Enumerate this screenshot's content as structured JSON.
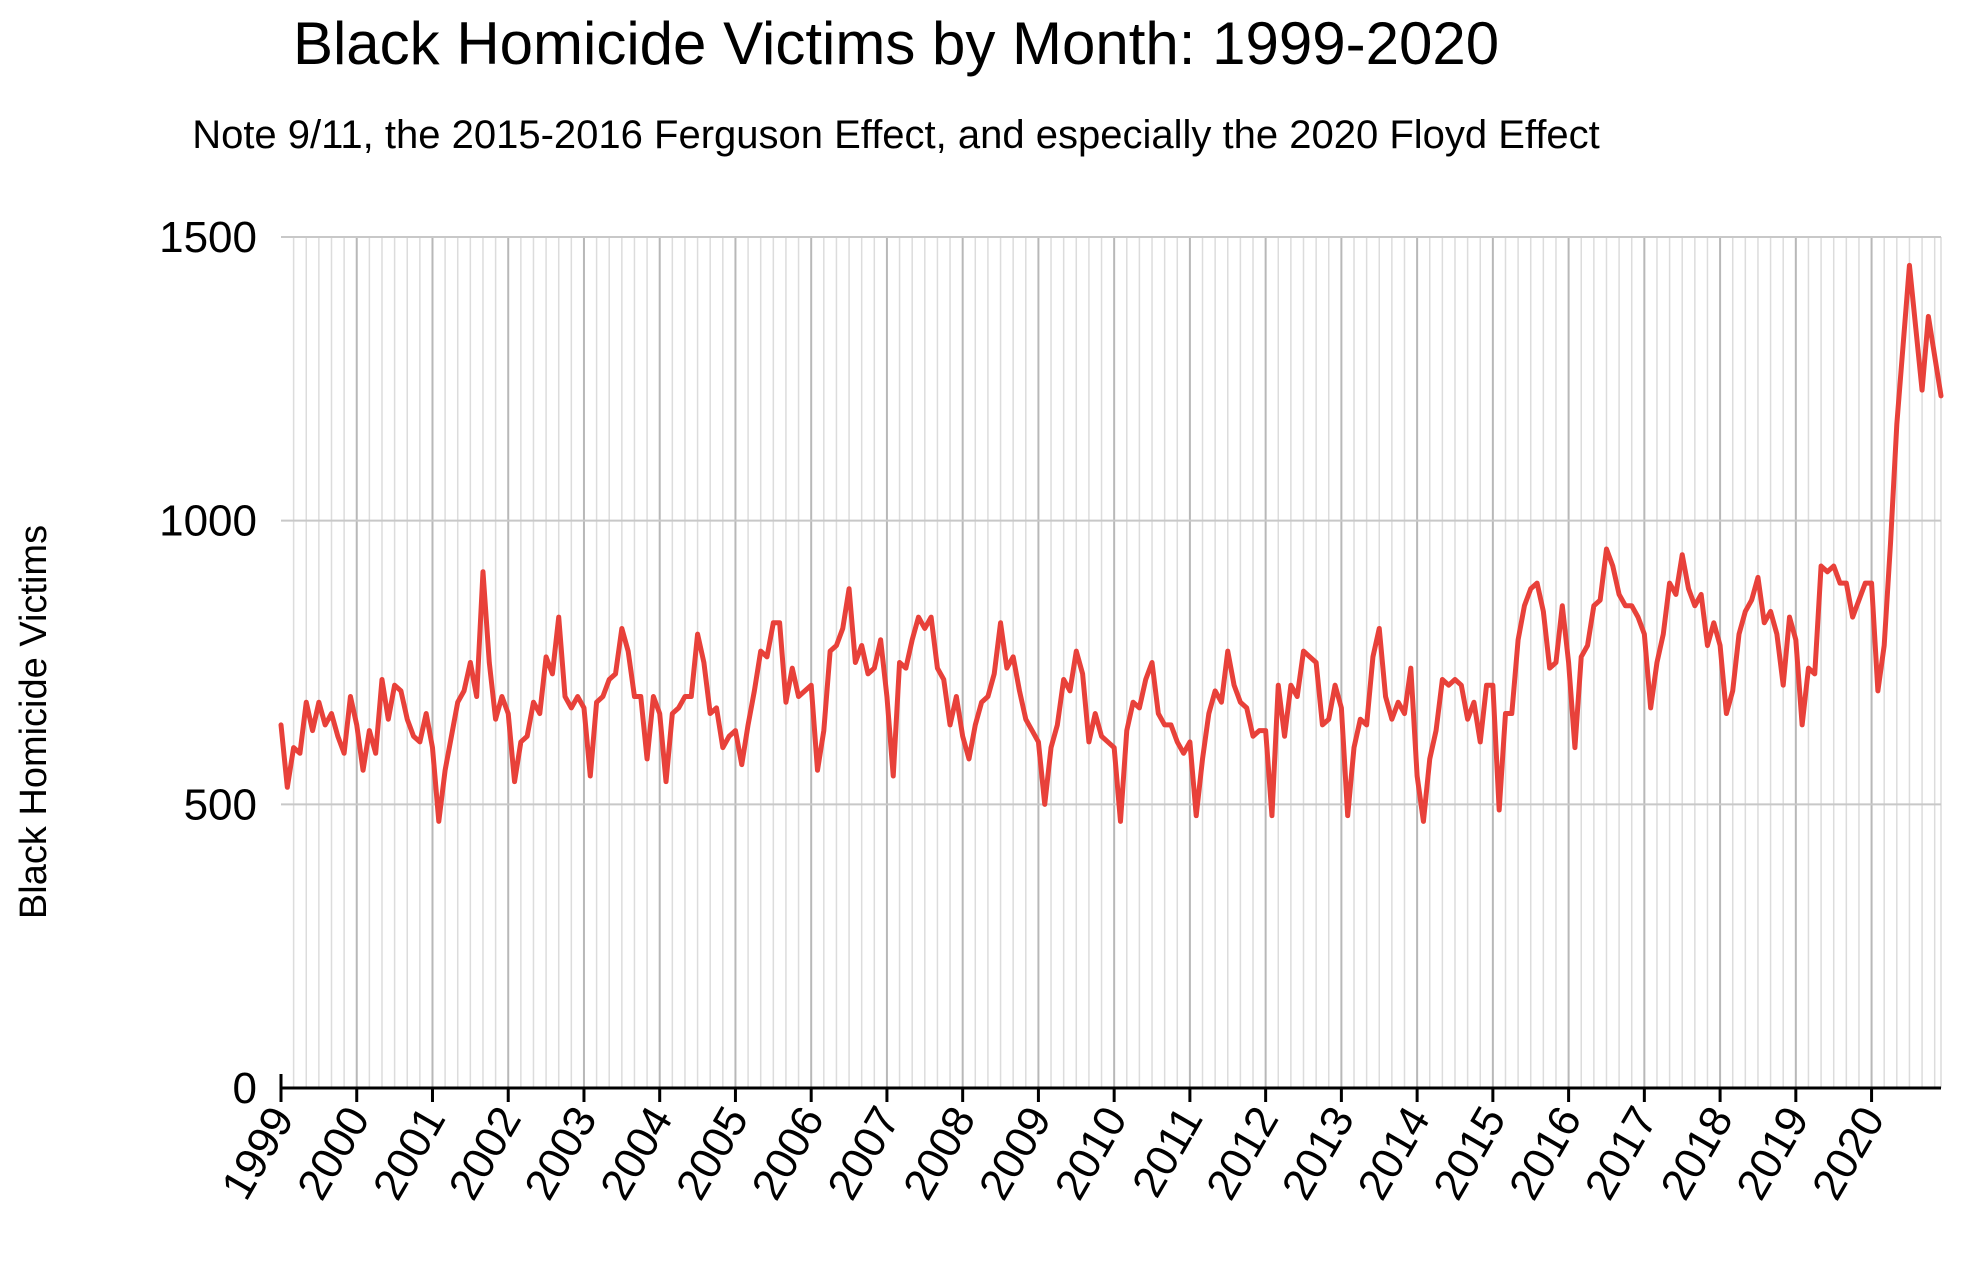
{
  "chart_data": {
    "type": "line",
    "title": "Black Homicide Victims by Month: 1999-2020",
    "subtitle": "Note 9/11, the 2015-2016 Ferguson Effect, and especially the 2020 Floyd Effect",
    "xlabel": "",
    "ylabel": "Black Homicide Victims",
    "ylim": [
      0,
      1500
    ],
    "yticks": [
      0,
      500,
      1000,
      1500
    ],
    "x_tick_labels": [
      "1999",
      "2000",
      "2001",
      "2002",
      "2003",
      "2004",
      "2005",
      "2006",
      "2007",
      "2008",
      "2009",
      "2010",
      "2011",
      "2012",
      "2013",
      "2014",
      "2015",
      "2016",
      "2017",
      "2018",
      "2019",
      "2020"
    ],
    "x_start": "1999-01",
    "x_unit": "month",
    "grid": true,
    "line_color": "#e8413a",
    "series": [
      {
        "values": [
          640,
          530,
          600,
          590,
          680,
          630,
          680,
          640,
          660,
          620,
          590,
          690,
          640,
          560,
          630,
          590,
          720,
          650,
          710,
          700,
          650,
          620,
          610,
          660,
          600,
          470,
          560,
          620,
          680,
          700,
          750,
          690,
          910,
          750,
          650,
          690,
          660,
          540,
          610,
          620,
          680,
          660,
          760,
          730,
          830,
          690,
          670,
          690,
          670,
          550,
          680,
          690,
          720,
          730,
          810,
          770,
          690,
          690,
          580,
          690,
          660,
          540,
          660,
          670,
          690,
          690,
          800,
          750,
          660,
          670,
          600,
          620,
          630,
          570,
          640,
          700,
          770,
          760,
          820,
          820,
          680,
          740,
          690,
          700,
          710,
          560,
          630,
          770,
          780,
          810,
          880,
          750,
          780,
          730,
          740,
          790,
          690,
          550,
          750,
          740,
          790,
          830,
          810,
          830,
          740,
          720,
          640,
          690,
          620,
          580,
          640,
          680,
          690,
          730,
          820,
          740,
          760,
          700,
          650,
          630,
          610,
          500,
          600,
          640,
          720,
          700,
          770,
          730,
          610,
          660,
          620,
          610,
          600,
          470,
          630,
          680,
          670,
          720,
          750,
          660,
          640,
          640,
          610,
          590,
          610,
          480,
          580,
          660,
          700,
          680,
          770,
          710,
          680,
          670,
          620,
          630,
          630,
          480,
          710,
          620,
          710,
          690,
          770,
          760,
          750,
          640,
          650,
          710,
          670,
          480,
          600,
          650,
          640,
          760,
          810,
          690,
          650,
          680,
          660,
          740,
          550,
          470,
          580,
          630,
          720,
          710,
          720,
          710,
          650,
          680,
          610,
          710,
          710,
          490,
          660,
          660,
          790,
          850,
          880,
          890,
          840,
          740,
          750,
          850,
          750,
          600,
          760,
          780,
          850,
          860,
          950,
          920,
          870,
          850,
          850,
          830,
          800,
          670,
          750,
          800,
          890,
          870,
          940,
          880,
          850,
          870,
          780,
          820,
          780,
          660,
          700,
          800,
          840,
          860,
          900,
          820,
          840,
          800,
          710,
          830,
          790,
          640,
          740,
          730,
          920,
          910,
          920,
          890,
          890,
          830,
          860,
          890,
          890,
          700,
          780,
          960,
          1170,
          1310,
          1450,
          1340,
          1230,
          1360,
          1290,
          1220
        ]
      }
    ]
  }
}
